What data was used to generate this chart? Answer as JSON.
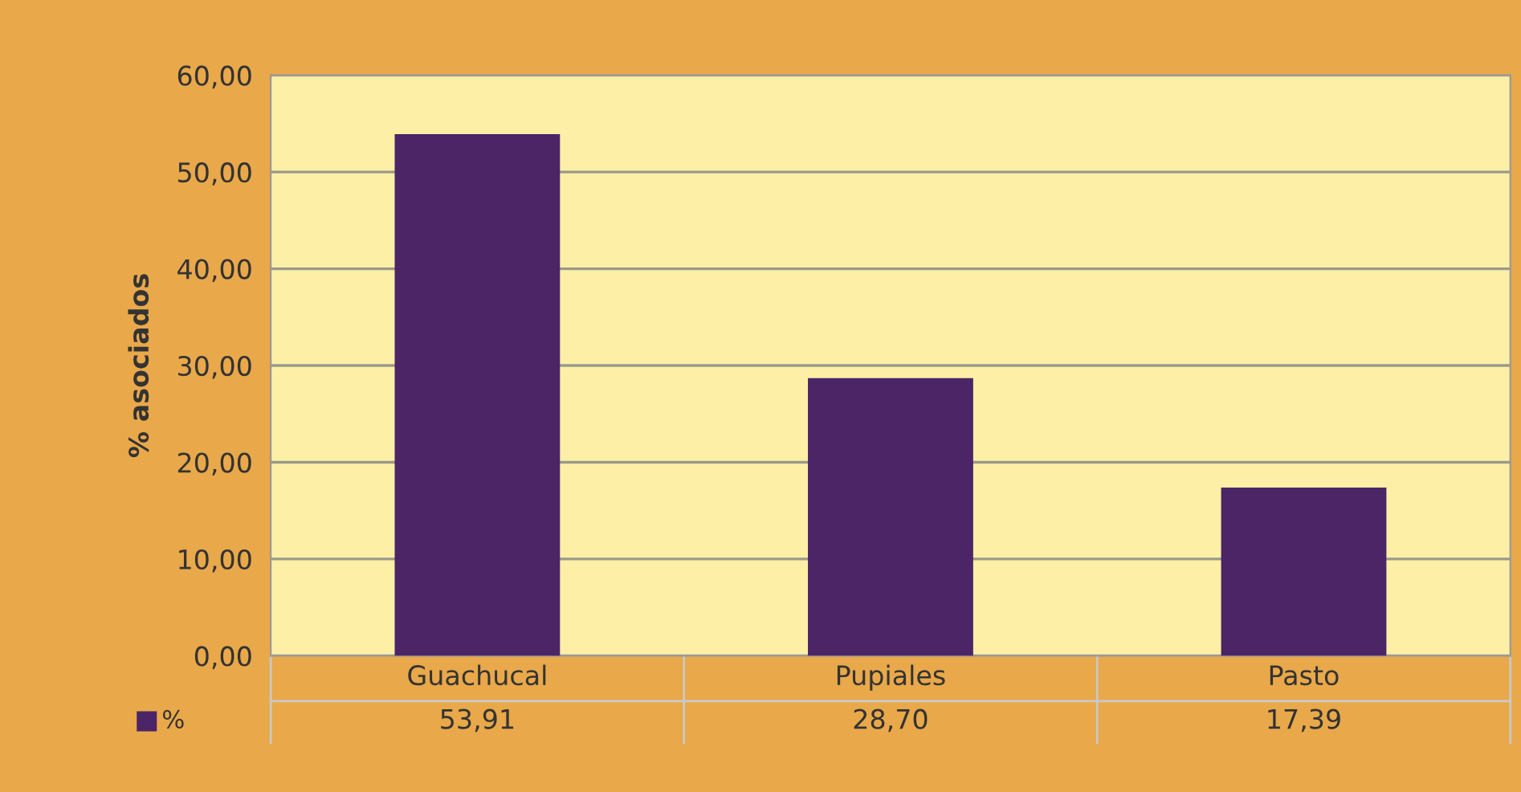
{
  "chart_data": {
    "type": "bar",
    "ylabel": "% asociados",
    "categories": [
      "Guachucal",
      "Pupiales",
      "Pasto"
    ],
    "series": [
      {
        "name": "%",
        "color": "#4b2566",
        "values": [
          53.91,
          28.7,
          17.39
        ],
        "value_labels": [
          "53,91",
          "28,70",
          "17,39"
        ]
      }
    ],
    "ylim": [
      0,
      60
    ],
    "yticks": [
      {
        "value": 0,
        "label": "0,00"
      },
      {
        "value": 10,
        "label": "10,00"
      },
      {
        "value": 20,
        "label": "20,00"
      },
      {
        "value": 30,
        "label": "30,00"
      },
      {
        "value": 40,
        "label": "40,00"
      },
      {
        "value": 50,
        "label": "50,00"
      },
      {
        "value": 60,
        "label": "60,00"
      }
    ],
    "grid": "y",
    "legend": "bottom"
  }
}
